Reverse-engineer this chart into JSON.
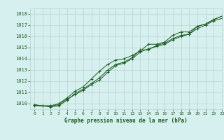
{
  "xlabel": "Graphe pression niveau de la mer (hPa)",
  "background_color": "#d6f0ef",
  "grid_color": "#b8d0d0",
  "line_color": "#1a5c1a",
  "xlim": [
    -0.5,
    23
  ],
  "ylim": [
    1009.5,
    1018.5
  ],
  "yticks": [
    1010,
    1011,
    1012,
    1013,
    1014,
    1015,
    1016,
    1017,
    1018
  ],
  "xticks": [
    0,
    1,
    2,
    3,
    4,
    5,
    6,
    7,
    8,
    9,
    10,
    11,
    12,
    13,
    14,
    15,
    16,
    17,
    18,
    19,
    20,
    21,
    22,
    23
  ],
  "series": [
    {
      "x": [
        0,
        1,
        2,
        3,
        4,
        5,
        6,
        7,
        8,
        9,
        10,
        11,
        12,
        13,
        14,
        15,
        16,
        17,
        18,
        19,
        20,
        21,
        22,
        23
      ],
      "y": [
        1009.9,
        1009.8,
        1009.8,
        1010.0,
        1010.5,
        1011.1,
        1011.5,
        1012.2,
        1012.9,
        1013.5,
        1013.9,
        1014.0,
        1014.3,
        1014.7,
        1015.3,
        1015.3,
        1015.5,
        1016.1,
        1016.4,
        1016.4,
        1016.9,
        1017.1,
        1017.5,
        1017.8
      ]
    },
    {
      "x": [
        0,
        1,
        2,
        3,
        4,
        5,
        6,
        7,
        8,
        9,
        10,
        11,
        12,
        13,
        14,
        15,
        16,
        17,
        18,
        19,
        20,
        21,
        22,
        23
      ],
      "y": [
        1009.9,
        1009.8,
        1009.7,
        1009.8,
        1010.3,
        1010.9,
        1011.3,
        1011.8,
        1012.3,
        1013.0,
        1013.5,
        1013.7,
        1014.1,
        1014.8,
        1014.8,
        1015.2,
        1015.4,
        1015.8,
        1016.1,
        1016.2,
        1016.7,
        1017.0,
        1017.4,
        1017.6
      ]
    },
    {
      "x": [
        0,
        1,
        2,
        3,
        4,
        5,
        6,
        7,
        8,
        9,
        10,
        11,
        12,
        13,
        14,
        15,
        16,
        17,
        18,
        19,
        20,
        21,
        22,
        23
      ],
      "y": [
        1009.8,
        1009.8,
        1009.8,
        1009.9,
        1010.4,
        1010.8,
        1011.2,
        1011.7,
        1012.1,
        1012.8,
        1013.4,
        1013.6,
        1014.0,
        1014.6,
        1014.9,
        1015.1,
        1015.3,
        1015.7,
        1016.0,
        1016.2,
        1016.9,
        1017.1,
        1017.5,
        1017.8
      ]
    }
  ]
}
